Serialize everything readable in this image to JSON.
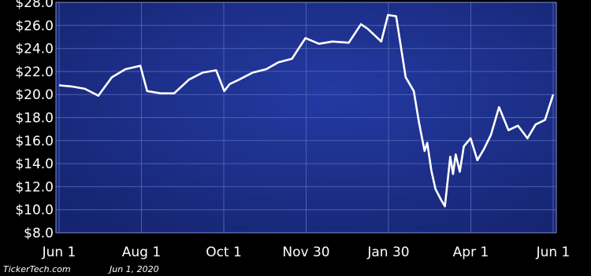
{
  "chart_data": {
    "type": "line",
    "title": "",
    "xlabel": "",
    "ylabel": "",
    "ylim": [
      8,
      28
    ],
    "yticks": [
      28,
      26,
      24,
      22,
      20,
      18,
      16,
      14,
      12,
      10,
      8
    ],
    "ytick_labels": [
      "$28.0",
      "$26.0",
      "$24.0",
      "$22.0",
      "$20.0",
      "$18.0",
      "$16.0",
      "$14.0",
      "$12.0",
      "$10.0",
      "$8.0"
    ],
    "xticks": [
      "Jun 1",
      "Aug 1",
      "Oct 1",
      "Nov 30",
      "Jan 30",
      "Apr 1",
      "Jun 1"
    ],
    "grid": true,
    "series": [
      {
        "x": [
          "2019-06-01",
          "2019-06-10",
          "2019-06-20",
          "2019-06-30",
          "2019-07-10",
          "2019-07-20",
          "2019-07-31",
          "2019-08-05",
          "2019-08-15",
          "2019-08-25",
          "2019-09-05",
          "2019-09-15",
          "2019-09-25",
          "2019-10-01",
          "2019-10-05",
          "2019-10-12",
          "2019-10-22",
          "2019-11-01",
          "2019-11-10",
          "2019-11-20",
          "2019-11-30",
          "2019-12-10",
          "2019-12-20",
          "2020-01-01",
          "2020-01-10",
          "2020-01-15",
          "2020-01-25",
          "2020-01-30",
          "2020-02-05",
          "2020-02-12",
          "2020-02-18",
          "2020-02-22",
          "2020-02-26",
          "2020-02-28",
          "2020-03-02",
          "2020-03-05",
          "2020-03-09",
          "2020-03-12",
          "2020-03-16",
          "2020-03-18",
          "2020-03-20",
          "2020-03-23",
          "2020-03-26",
          "2020-03-31",
          "2020-04-05",
          "2020-04-10",
          "2020-04-15",
          "2020-04-21",
          "2020-04-28",
          "2020-05-05",
          "2020-05-12",
          "2020-05-18",
          "2020-05-25",
          "2020-05-31"
        ],
        "values": [
          20.8,
          20.7,
          20.5,
          19.9,
          21.5,
          22.2,
          22.5,
          20.3,
          20.1,
          20.1,
          21.3,
          21.9,
          22.1,
          20.3,
          20.9,
          21.3,
          21.9,
          22.2,
          22.8,
          23.1,
          24.9,
          24.4,
          24.6,
          24.5,
          26.1,
          25.7,
          24.6,
          26.9,
          26.8,
          21.5,
          20.3,
          17.5,
          15.1,
          15.8,
          13.4,
          11.8,
          10.9,
          10.3,
          14.6,
          13.1,
          14.8,
          13.3,
          15.5,
          16.2,
          14.3,
          15.3,
          16.5,
          18.9,
          16.9,
          17.3,
          16.2,
          17.4,
          17.8,
          20.0
        ]
      }
    ]
  },
  "footer": {
    "source": "TickerTech.com",
    "date": "Jun 1, 2020"
  },
  "colors": {
    "background": "#000000",
    "plot_bg": "#1a2e8f",
    "line": "#ffffff",
    "grid": "#4b5fb3",
    "axis": "#7f8fd6"
  }
}
